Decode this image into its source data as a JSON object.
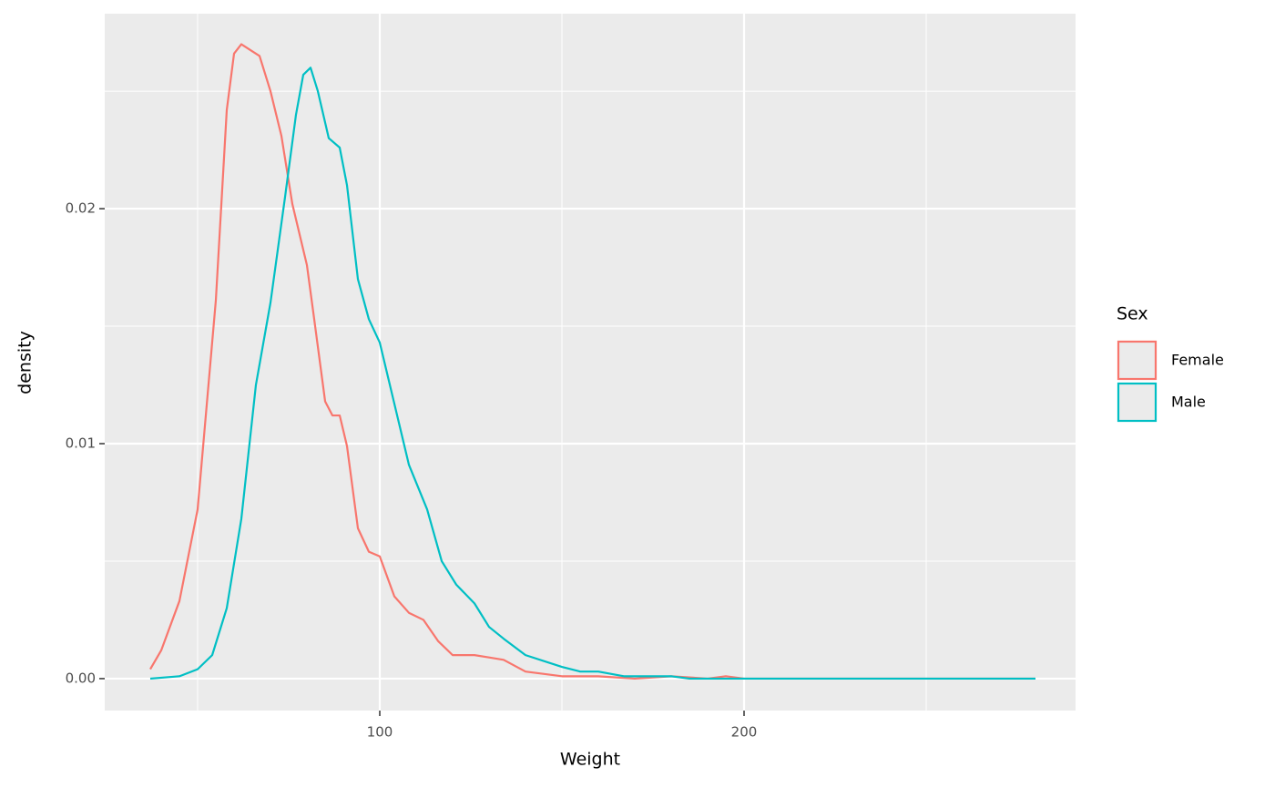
{
  "chart_data": {
    "type": "line",
    "x_label": "Weight",
    "y_label": "density",
    "legend_title": "Sex",
    "legend_position": "right",
    "xlim": [
      24.5,
      291
    ],
    "xticks": [
      100,
      200
    ],
    "x_minor_ticks": [
      50,
      150,
      250
    ],
    "ylim": [
      -0.00136,
      0.0283
    ],
    "yticks": [
      {
        "value": 0,
        "label": "0.00"
      },
      0.01,
      0.02
    ],
    "y_minor_ticks": [
      0.005,
      0.015,
      0.025
    ],
    "grid": true,
    "series": [
      {
        "name": "Female",
        "color": "#F8766D",
        "x": [
          37,
          40,
          45,
          50,
          55,
          58,
          60,
          62,
          65,
          67,
          70,
          73,
          76,
          80,
          82,
          85,
          87,
          89,
          91,
          94,
          97,
          100,
          104,
          108,
          112,
          116,
          120,
          126,
          130,
          134,
          140,
          150,
          160,
          170,
          180,
          190,
          195,
          200,
          250,
          280
        ],
        "values": [
          0.0004,
          0.0012,
          0.0033,
          0.0072,
          0.0161,
          0.0242,
          0.0266,
          0.027,
          0.0267,
          0.0265,
          0.025,
          0.0231,
          0.0202,
          0.0176,
          0.0153,
          0.0118,
          0.0112,
          0.0112,
          0.0099,
          0.0064,
          0.0054,
          0.0052,
          0.0035,
          0.0028,
          0.0025,
          0.0016,
          0.001,
          0.001,
          0.0009,
          0.0008,
          0.0003,
          0.0001,
          0.0001,
          0,
          0.0001,
          0,
          0.0001,
          0,
          0,
          0
        ]
      },
      {
        "name": "Male",
        "color": "#00BFC4",
        "x": [
          37,
          45,
          50,
          54,
          58,
          62,
          66,
          70,
          74,
          77,
          79,
          81,
          83,
          86,
          89,
          91,
          94,
          97,
          100,
          104,
          108,
          113,
          117,
          121,
          126,
          130,
          134,
          140,
          150,
          155,
          160,
          167,
          180,
          185,
          200,
          250,
          280
        ],
        "values": [
          0,
          0.0001,
          0.0004,
          0.001,
          0.003,
          0.0068,
          0.0125,
          0.016,
          0.0205,
          0.024,
          0.0257,
          0.026,
          0.025,
          0.023,
          0.0226,
          0.021,
          0.017,
          0.0153,
          0.0143,
          0.0117,
          0.0091,
          0.0072,
          0.005,
          0.004,
          0.0032,
          0.0022,
          0.0017,
          0.001,
          0.0005,
          0.0003,
          0.0003,
          0.0001,
          0.0001,
          0,
          0,
          0,
          0
        ]
      }
    ]
  }
}
